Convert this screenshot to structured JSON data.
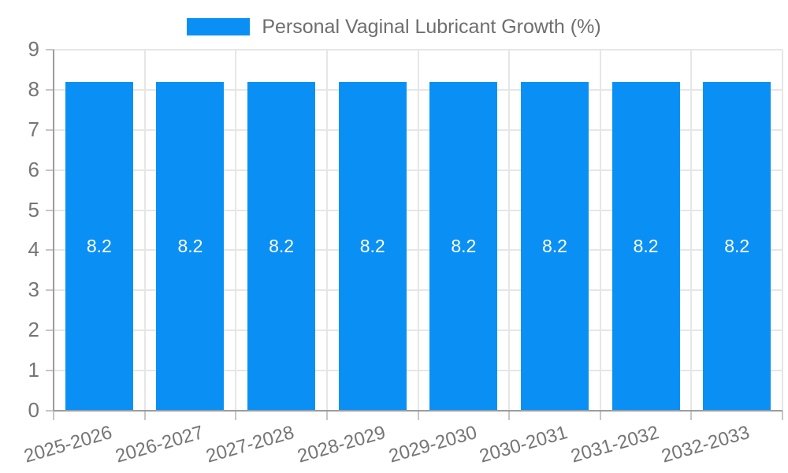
{
  "chart_data": {
    "type": "bar",
    "title": "Personal Vaginal Lubricant Growth (%)",
    "legend_position": "top",
    "categories": [
      "2025-2026",
      "2026-2027",
      "2027-2028",
      "2028-2029",
      "2029-2030",
      "2030-2031",
      "2031-2032",
      "2032-2033"
    ],
    "values": [
      8.2,
      8.2,
      8.2,
      8.2,
      8.2,
      8.2,
      8.2,
      8.2
    ],
    "value_labels": [
      "8.2",
      "8.2",
      "8.2",
      "8.2",
      "8.2",
      "8.2",
      "8.2",
      "8.2"
    ],
    "xlabel": "",
    "ylabel": "",
    "ylim": [
      0,
      9
    ],
    "ytick_step": 1,
    "ytick_labels": [
      "0",
      "1",
      "2",
      "3",
      "4",
      "5",
      "6",
      "7",
      "8",
      "9"
    ],
    "grid": true,
    "colors": {
      "bar": "#0a90f5",
      "bar_label": "#ffffff",
      "tick_text": "#757575",
      "title_text": "#6e6e6e",
      "gridline": "#e6e6e6",
      "axis_line": "#9c9c9c",
      "tick_mark": "#c6c6c6"
    }
  }
}
